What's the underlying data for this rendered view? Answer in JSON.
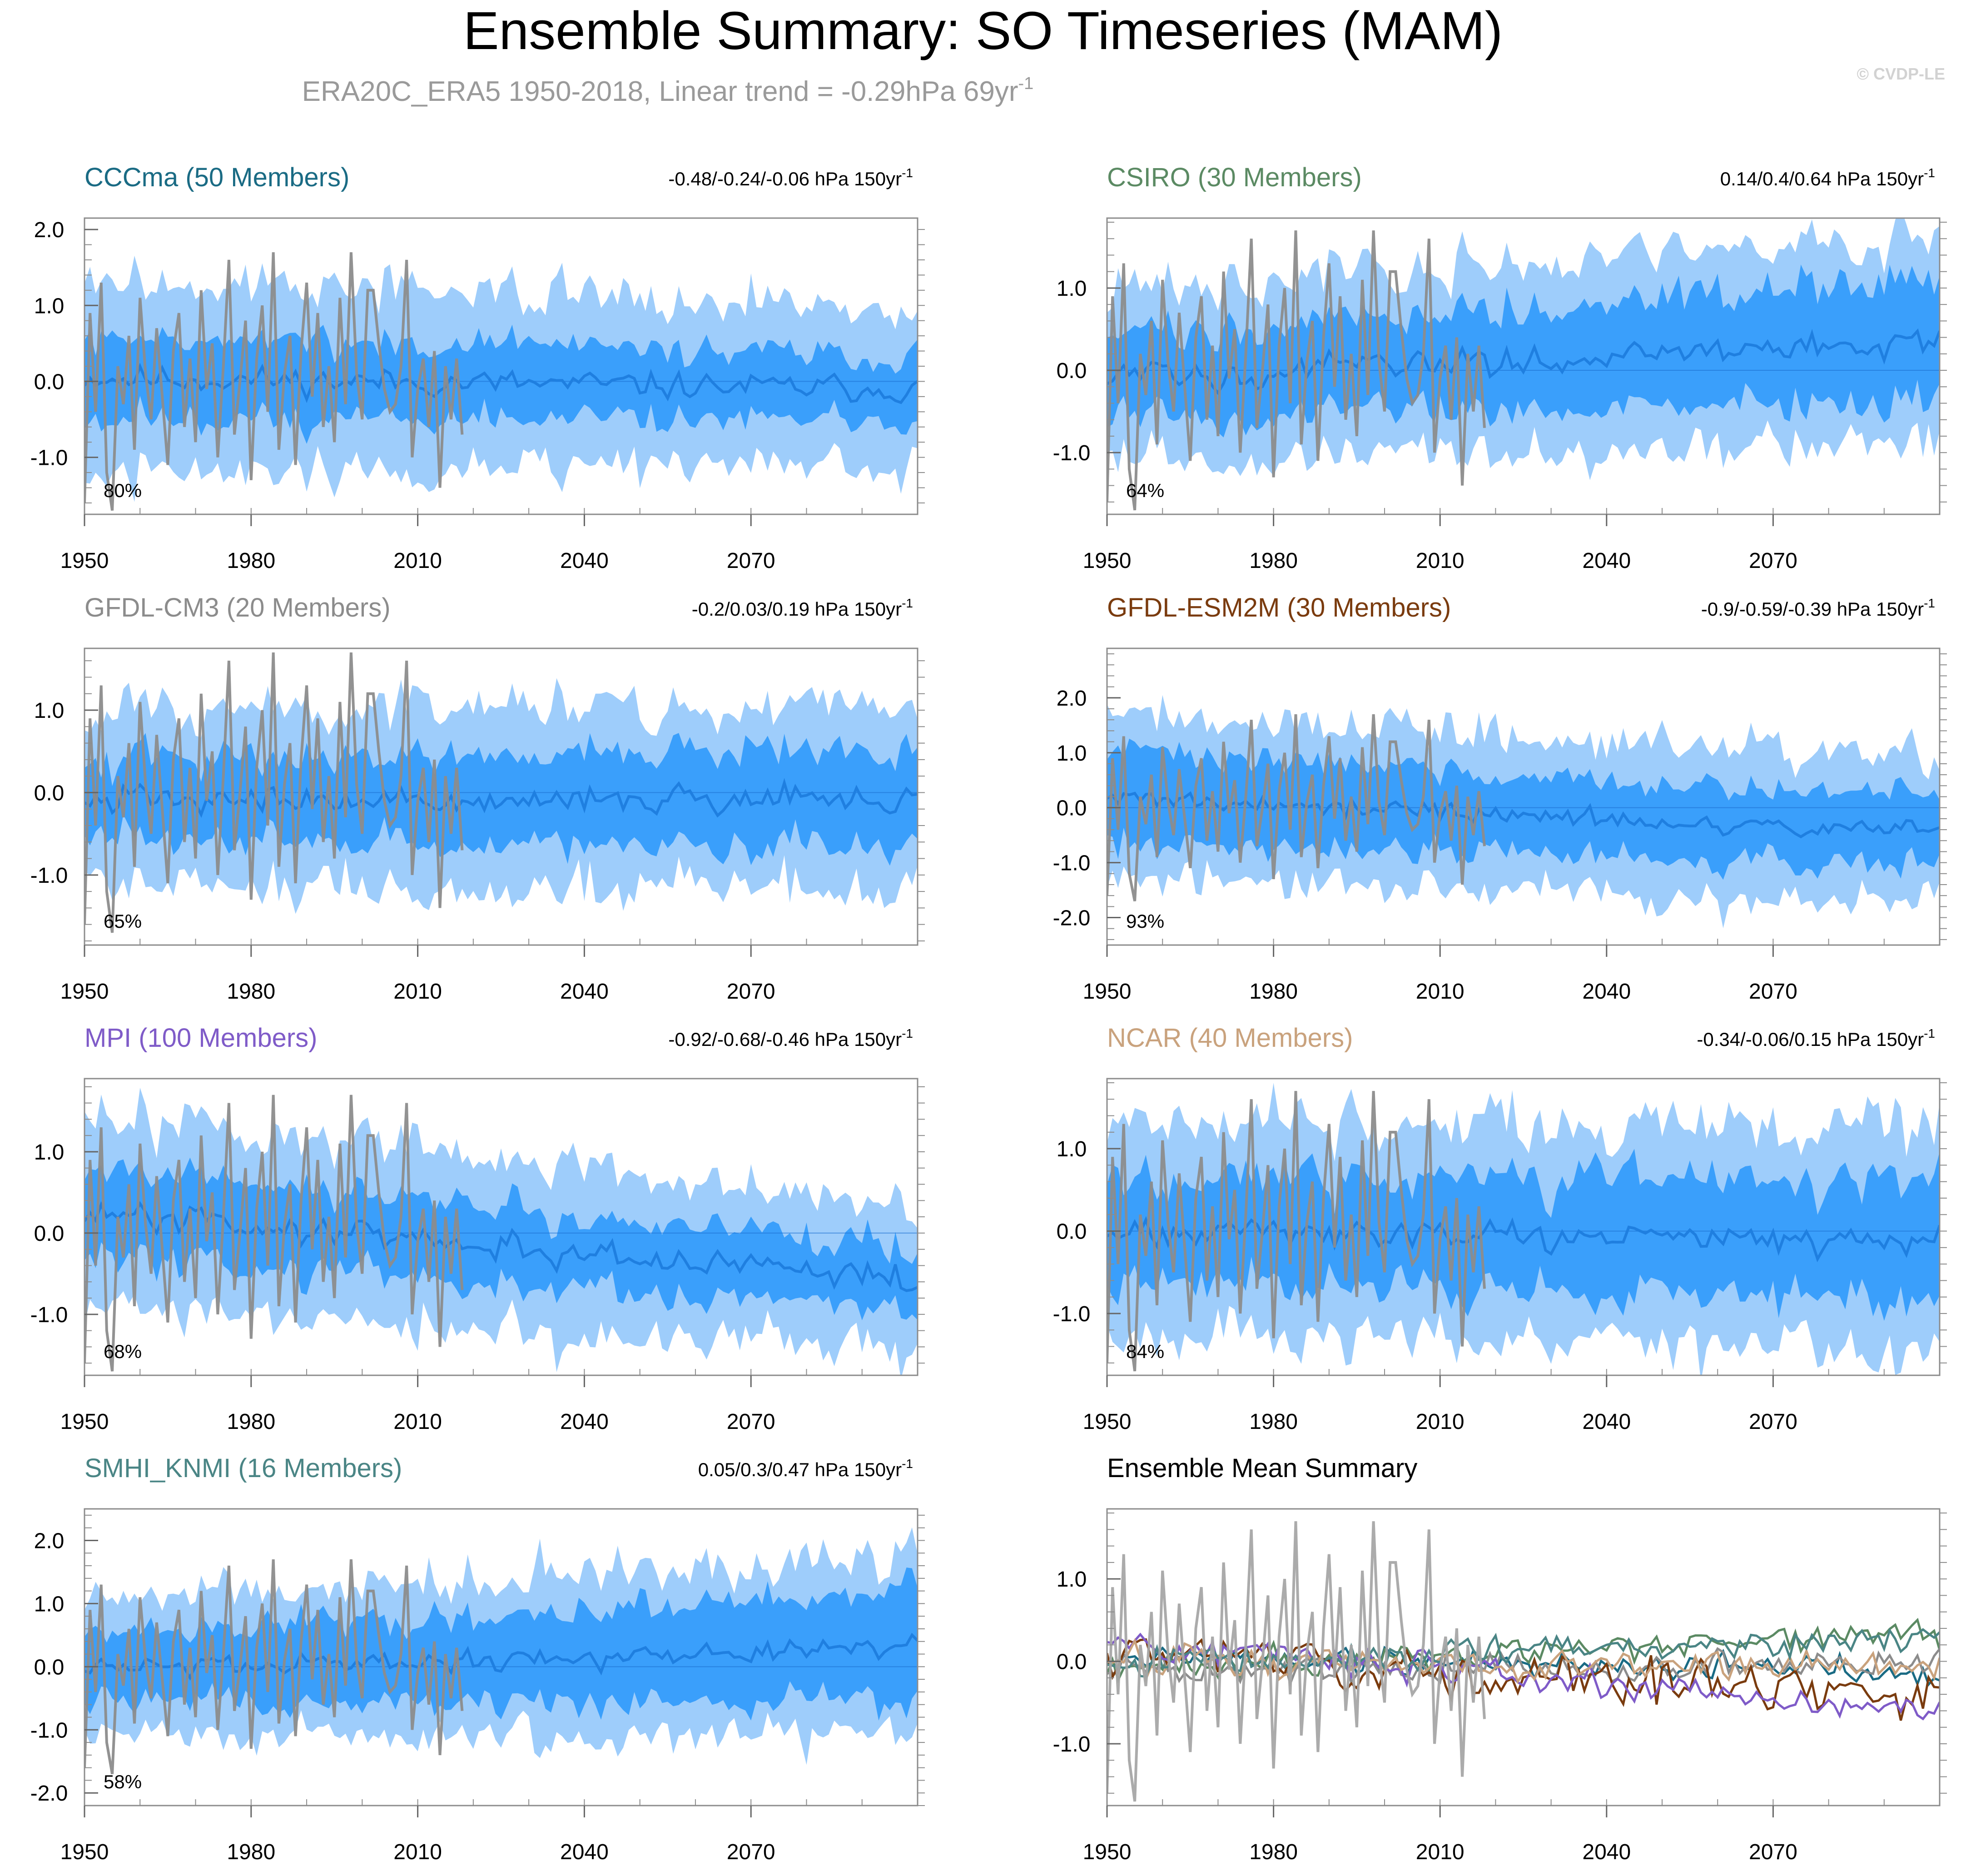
{
  "header": {
    "title": "Ensemble Summary: SO Timeseries (MAM)",
    "subtitle": "ERA20C_ERA5 1950-2018, Linear trend = -0.29hPa 69yr",
    "subtitle_superscript": "-1",
    "copyright": "© CVDP-LE"
  },
  "colors": {
    "band_outer": "#9ecdfb",
    "band_inner": "#3a9ffb",
    "ens_mean": "#1f7fe0",
    "obs": "#8c8c8c",
    "obs_overlay": "#a6a6a6"
  },
  "chart_data": [
    {
      "id": "cccma",
      "type": "line",
      "title": "CCCma (50 Members)",
      "title_color": "#1a6b84",
      "trend_text": "-0.48/-0.24/-0.06 hPa 150yr",
      "trend_sup": "-1",
      "percent_label": "80%",
      "x_range": [
        1950,
        2100
      ],
      "x_ticks": [
        "1950",
        "1980",
        "2010",
        "2040",
        "2070"
      ],
      "x_tick_values": [
        1950,
        1980,
        2010,
        2040,
        2070
      ],
      "y_range": [
        -1.75,
        2.15
      ],
      "y_ticks": [
        "-1.0",
        "0.0",
        "1.0",
        "2.0"
      ],
      "y_tick_values": [
        -1.0,
        0.0,
        1.0,
        2.0
      ],
      "series": [
        {
          "name": "ensemble-mean",
          "trend_start": 0.05,
          "trend_end": -0.1
        },
        {
          "name": "inner-band-halfwidth",
          "start": 0.55,
          "end": 0.45
        },
        {
          "name": "outer-band-halfwidth",
          "start": 1.3,
          "end": 1.05
        }
      ]
    },
    {
      "id": "csiro",
      "type": "line",
      "title": "CSIRO (30 Members)",
      "title_color": "#5b8a63",
      "trend_text": "0.14/0.4/0.64 hPa 150yr",
      "trend_sup": "-1",
      "percent_label": "64%",
      "x_range": [
        1950,
        2100
      ],
      "x_ticks": [
        "1950",
        "1980",
        "2010",
        "2040",
        "2070"
      ],
      "x_tick_values": [
        1950,
        1980,
        2010,
        2040,
        2070
      ],
      "y_range": [
        -1.75,
        1.85
      ],
      "y_ticks": [
        "-1.0",
        "0.0",
        "1.0"
      ],
      "y_tick_values": [
        -1.0,
        0.0,
        1.0
      ],
      "series": [
        {
          "name": "ensemble-mean",
          "trend_start": -0.1,
          "trend_end": 0.35
        },
        {
          "name": "inner-band-halfwidth",
          "start": 0.5,
          "end": 0.75
        },
        {
          "name": "outer-band-halfwidth",
          "start": 1.05,
          "end": 1.3
        }
      ]
    },
    {
      "id": "gfdl-cm3",
      "type": "line",
      "title": "GFDL-CM3 (20 Members)",
      "title_color": "#8c8c8c",
      "trend_text": "-0.2/0.03/0.19 hPa 150yr",
      "trend_sup": "-1",
      "percent_label": "65%",
      "x_range": [
        1950,
        2100
      ],
      "x_ticks": [
        "1950",
        "1980",
        "2010",
        "2040",
        "2070"
      ],
      "x_tick_values": [
        1950,
        1980,
        2010,
        2040,
        2070
      ],
      "y_range": [
        -1.85,
        1.75
      ],
      "y_ticks": [
        "-1.0",
        "0.0",
        "1.0"
      ],
      "y_tick_values": [
        -1.0,
        0.0,
        1.0
      ],
      "series": [
        {
          "name": "ensemble-mean",
          "trend_start": -0.1,
          "trend_end": -0.05
        },
        {
          "name": "inner-band-halfwidth",
          "start": 0.5,
          "end": 0.6
        },
        {
          "name": "outer-band-halfwidth",
          "start": 1.05,
          "end": 1.2
        }
      ]
    },
    {
      "id": "gfdl-esm2m",
      "type": "line",
      "title": "GFDL-ESM2M (30 Members)",
      "title_color": "#7a3b0e",
      "trend_text": "-0.9/-0.59/-0.39 hPa 150yr",
      "trend_sup": "-1",
      "percent_label": "93%",
      "x_range": [
        1950,
        2100
      ],
      "x_ticks": [
        "1950",
        "1980",
        "2010",
        "2040",
        "2070"
      ],
      "x_tick_values": [
        1950,
        1980,
        2010,
        2040,
        2070
      ],
      "y_range": [
        -2.5,
        2.9
      ],
      "y_ticks": [
        "-2.0",
        "-1.0",
        "0.0",
        "1.0",
        "2.0"
      ],
      "y_tick_values": [
        -2.0,
        -1.0,
        0.0,
        1.0,
        2.0
      ],
      "series": [
        {
          "name": "ensemble-mean",
          "trend_start": 0.15,
          "trend_end": -0.45
        },
        {
          "name": "inner-band-halfwidth",
          "start": 0.8,
          "end": 0.65
        },
        {
          "name": "outer-band-halfwidth",
          "start": 1.6,
          "end": 1.3
        }
      ]
    },
    {
      "id": "mpi",
      "type": "line",
      "title": "MPI (100 Members)",
      "title_color": "#7f5bc8",
      "trend_text": "-0.92/-0.68/-0.46 hPa 150yr",
      "trend_sup": "-1",
      "percent_label": "68%",
      "x_range": [
        1950,
        2100
      ],
      "x_ticks": [
        "1950",
        "1980",
        "2010",
        "2040",
        "2070"
      ],
      "x_tick_values": [
        1950,
        1980,
        2010,
        2040,
        2070
      ],
      "y_range": [
        -1.75,
        1.9
      ],
      "y_ticks": [
        "-1.0",
        "0.0",
        "1.0"
      ],
      "y_tick_values": [
        -1.0,
        0.0,
        1.0
      ],
      "series": [
        {
          "name": "ensemble-mean",
          "trend_start": 0.25,
          "trend_end": -0.6
        },
        {
          "name": "inner-band-halfwidth",
          "start": 0.55,
          "end": 0.4
        },
        {
          "name": "outer-band-halfwidth",
          "start": 1.25,
          "end": 0.9
        }
      ]
    },
    {
      "id": "ncar",
      "type": "line",
      "title": "NCAR (40 Members)",
      "title_color": "#c9a27d",
      "trend_text": "-0.34/-0.06/0.15 hPa 150yr",
      "trend_sup": "-1",
      "percent_label": "84%",
      "x_range": [
        1950,
        2100
      ],
      "x_ticks": [
        "1950",
        "1980",
        "2010",
        "2040",
        "2070"
      ],
      "x_tick_values": [
        1950,
        1980,
        2010,
        2040,
        2070
      ],
      "y_range": [
        -1.75,
        1.85
      ],
      "y_ticks": [
        "-1.0",
        "0.0",
        "1.0"
      ],
      "y_tick_values": [
        -1.0,
        0.0,
        1.0
      ],
      "series": [
        {
          "name": "ensemble-mean",
          "trend_start": 0.0,
          "trend_end": -0.1
        },
        {
          "name": "inner-band-halfwidth",
          "start": 0.65,
          "end": 0.75
        },
        {
          "name": "outer-band-halfwidth",
          "start": 1.3,
          "end": 1.45
        }
      ]
    },
    {
      "id": "smhi-knmi",
      "type": "line",
      "title": "SMHI_KNMI (16 Members)",
      "title_color": "#4a8585",
      "trend_text": "0.05/0.3/0.47 hPa 150yr",
      "trend_sup": "-1",
      "percent_label": "58%",
      "x_range": [
        1950,
        2100
      ],
      "x_ticks": [
        "1950",
        "1980",
        "2010",
        "2040",
        "2070"
      ],
      "x_tick_values": [
        1950,
        1980,
        2010,
        2040,
        2070
      ],
      "y_range": [
        -2.2,
        2.5
      ],
      "y_ticks": [
        "-2.0",
        "-1.0",
        "0.0",
        "1.0",
        "2.0"
      ],
      "y_tick_values": [
        -2.0,
        -1.0,
        0.0,
        1.0,
        2.0
      ],
      "series": [
        {
          "name": "ensemble-mean",
          "trend_start": -0.05,
          "trend_end": 0.3
        },
        {
          "name": "inner-band-halfwidth",
          "start": 0.55,
          "end": 0.85
        },
        {
          "name": "outer-band-halfwidth",
          "start": 1.1,
          "end": 1.5
        }
      ]
    },
    {
      "id": "ensemble-mean-summary",
      "type": "line",
      "title": "Ensemble Mean Summary",
      "title_color": "#000000",
      "x_range": [
        1950,
        2100
      ],
      "x_ticks": [
        "1950",
        "1980",
        "2010",
        "2040",
        "2070"
      ],
      "x_tick_values": [
        1950,
        1980,
        2010,
        2040,
        2070
      ],
      "y_range": [
        -1.75,
        1.85
      ],
      "y_ticks": [
        "-1.0",
        "0.0",
        "1.0"
      ],
      "y_tick_values": [
        -1.0,
        0.0,
        1.0
      ],
      "series": [
        {
          "name": "CCCma",
          "color": "#1a6b84",
          "trend_start": 0.05,
          "trend_end": -0.1
        },
        {
          "name": "CSIRO",
          "color": "#5b8a63",
          "trend_start": -0.1,
          "trend_end": 0.35
        },
        {
          "name": "GFDL-CM3",
          "color": "#8c8c8c",
          "trend_start": -0.1,
          "trend_end": -0.05
        },
        {
          "name": "GFDL-ESM2M",
          "color": "#7a3b0e",
          "trend_start": 0.15,
          "trend_end": -0.45
        },
        {
          "name": "MPI",
          "color": "#7f5bc8",
          "trend_start": 0.25,
          "trend_end": -0.6
        },
        {
          "name": "NCAR",
          "color": "#c9a27d",
          "trend_start": 0.0,
          "trend_end": -0.1
        },
        {
          "name": "SMHI_KNMI",
          "color": "#4a8585",
          "trend_start": -0.05,
          "trend_end": 0.3
        }
      ]
    }
  ],
  "observations": {
    "name": "ERA20C_ERA5",
    "years": [
      1950,
      2018
    ],
    "values": [
      -1.6,
      0.9,
      -0.4,
      1.3,
      -1.2,
      -1.7,
      0.2,
      -0.3,
      0.6,
      -0.9,
      1.1,
      0.1,
      -0.5,
      0.7,
      -0.2,
      -1.1,
      0.4,
      0.9,
      -0.6,
      0.3,
      -0.8,
      1.2,
      -0.1,
      0.5,
      -1.0,
      0.2,
      1.6,
      -0.7,
      0.0,
      0.8,
      -1.3,
      0.3,
      1.0,
      -0.4,
      1.7,
      -0.9,
      0.1,
      0.6,
      -1.1,
      0.4,
      1.3,
      -0.2,
      0.9,
      -0.6,
      0.2,
      -0.8,
      1.1,
      -0.3,
      1.7,
      0.1,
      -0.5,
      1.2,
      1.2,
      0.5,
      -0.1,
      -0.4,
      -0.3,
      0.2,
      1.6,
      -1.0,
      -0.1,
      0.3,
      -0.6,
      0.4,
      -1.4,
      0.2,
      -0.5,
      0.3,
      -0.7
    ]
  }
}
